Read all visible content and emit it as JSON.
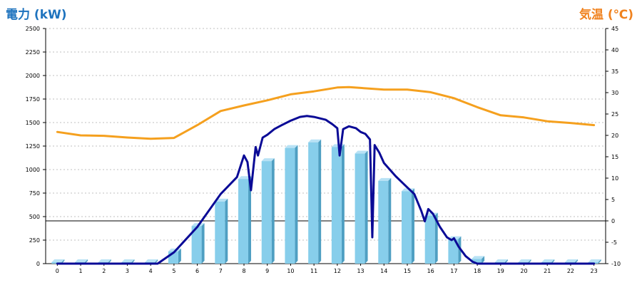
{
  "chart_data": {
    "type": "bar",
    "title": "",
    "left_axis_title": "電力 (kW)",
    "right_axis_title": "気温 (℃)",
    "categories": [
      "0",
      "1",
      "2",
      "3",
      "4",
      "5",
      "6",
      "7",
      "8",
      "9",
      "10",
      "11",
      "12",
      "13",
      "14",
      "15",
      "16",
      "17",
      "18",
      "19",
      "20",
      "21",
      "22",
      "23"
    ],
    "left_axis": {
      "min": 0,
      "max": 2500,
      "ticks": [
        0,
        250,
        500,
        750,
        1000,
        1250,
        1500,
        1750,
        2000,
        2250,
        2500
      ]
    },
    "right_axis": {
      "min": -10,
      "max": 45,
      "ticks": [
        -10,
        -5,
        0,
        5,
        10,
        15,
        20,
        25,
        30,
        35,
        40,
        45
      ]
    },
    "grid": true,
    "reference_line_right_value": 0,
    "colors": {
      "bar": "#87ceeb",
      "bar_side": "#4f9fc2",
      "bar_top": "#b8e2f5",
      "power_line": "#0a0a96",
      "temperature_line": "#f5a01e",
      "left_title": "#1e73be",
      "right_title": "#f0821e"
    },
    "series": [
      {
        "kind": "bar",
        "axis": "left",
        "values": [
          15,
          15,
          15,
          15,
          15,
          130,
          400,
          660,
          900,
          1090,
          1230,
          1290,
          1240,
          1170,
          880,
          770,
          510,
          260,
          50,
          15,
          15,
          15,
          15,
          15
        ]
      },
      {
        "kind": "line",
        "axis": "left",
        "points": [
          [
            0,
            0
          ],
          [
            1,
            0
          ],
          [
            2,
            0
          ],
          [
            3,
            0
          ],
          [
            4,
            0
          ],
          [
            4.3,
            0
          ],
          [
            5,
            120
          ],
          [
            6,
            390
          ],
          [
            7,
            740
          ],
          [
            7.7,
            920
          ],
          [
            8,
            1150
          ],
          [
            8.15,
            1080
          ],
          [
            8.3,
            780
          ],
          [
            8.5,
            1240
          ],
          [
            8.6,
            1150
          ],
          [
            8.8,
            1340
          ],
          [
            9,
            1370
          ],
          [
            9.3,
            1430
          ],
          [
            9.6,
            1470
          ],
          [
            10,
            1520
          ],
          [
            10.4,
            1560
          ],
          [
            10.7,
            1570
          ],
          [
            11,
            1560
          ],
          [
            11.5,
            1530
          ],
          [
            11.8,
            1480
          ],
          [
            12,
            1440
          ],
          [
            12.1,
            1150
          ],
          [
            12.25,
            1430
          ],
          [
            12.5,
            1460
          ],
          [
            12.8,
            1440
          ],
          [
            13,
            1400
          ],
          [
            13.2,
            1380
          ],
          [
            13.4,
            1320
          ],
          [
            13.5,
            280
          ],
          [
            13.6,
            1260
          ],
          [
            13.8,
            1180
          ],
          [
            14,
            1070
          ],
          [
            14.5,
            930
          ],
          [
            15,
            810
          ],
          [
            15.3,
            740
          ],
          [
            15.6,
            560
          ],
          [
            15.75,
            450
          ],
          [
            15.9,
            580
          ],
          [
            16.1,
            530
          ],
          [
            16.4,
            390
          ],
          [
            16.7,
            280
          ],
          [
            16.9,
            250
          ],
          [
            17,
            270
          ],
          [
            17.2,
            180
          ],
          [
            17.5,
            80
          ],
          [
            17.8,
            20
          ],
          [
            18,
            0
          ],
          [
            19,
            0
          ],
          [
            20,
            0
          ],
          [
            21,
            0
          ],
          [
            22,
            0
          ],
          [
            23,
            0
          ]
        ]
      },
      {
        "kind": "line",
        "axis": "right",
        "points": [
          [
            0,
            20.8
          ],
          [
            1,
            20.0
          ],
          [
            2,
            19.9
          ],
          [
            3,
            19.5
          ],
          [
            4,
            19.2
          ],
          [
            5,
            19.4
          ],
          [
            6,
            22.4
          ],
          [
            7,
            25.7
          ],
          [
            8,
            27.0
          ],
          [
            9,
            28.2
          ],
          [
            10,
            29.6
          ],
          [
            11,
            30.3
          ],
          [
            12,
            31.2
          ],
          [
            12.5,
            31.3
          ],
          [
            13,
            31.1
          ],
          [
            14,
            30.7
          ],
          [
            15,
            30.7
          ],
          [
            16,
            30.1
          ],
          [
            17,
            28.7
          ],
          [
            18,
            26.6
          ],
          [
            19,
            24.7
          ],
          [
            20,
            24.2
          ],
          [
            21,
            23.3
          ],
          [
            22,
            22.9
          ],
          [
            23,
            22.4
          ]
        ]
      }
    ]
  }
}
